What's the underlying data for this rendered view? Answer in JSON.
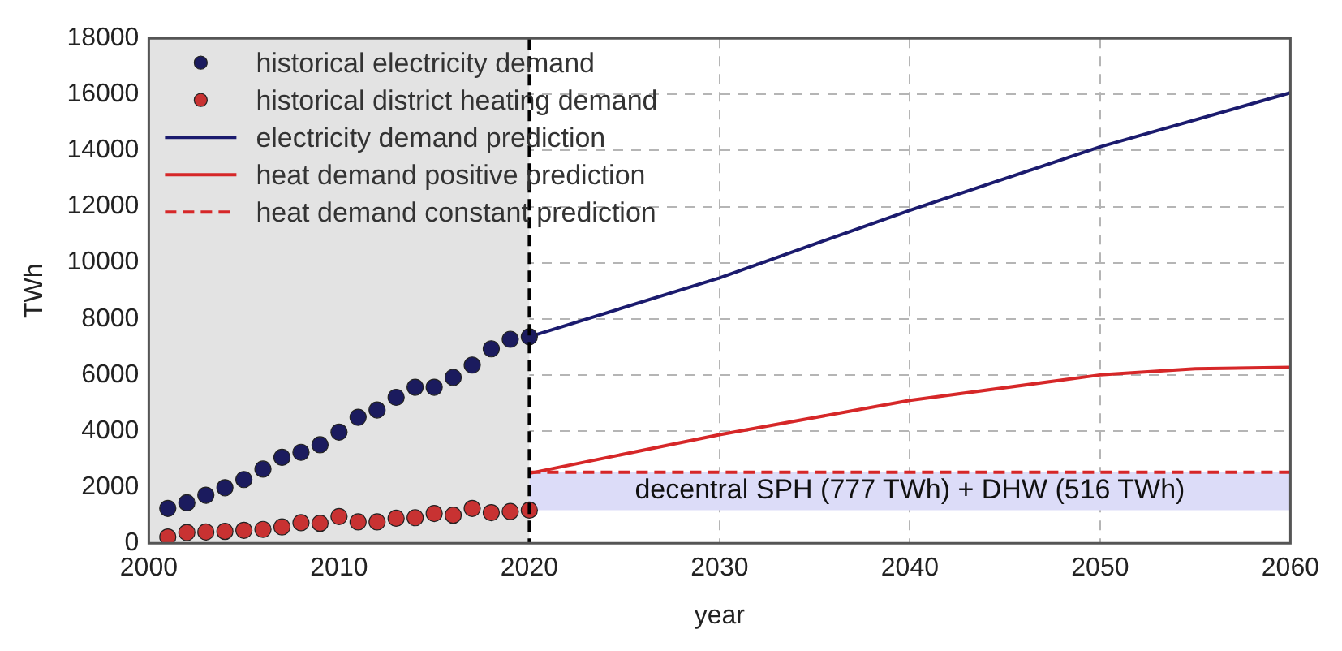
{
  "chart_data": {
    "type": "scatter",
    "xlabel": "year",
    "ylabel": "TWh",
    "xlim": [
      2000,
      2060
    ],
    "xticks": [
      2000,
      2010,
      2020,
      2030,
      2040,
      2050,
      2060
    ],
    "ylim": [
      0,
      18000
    ],
    "yticks": [
      0,
      2000,
      4000,
      6000,
      8000,
      10000,
      12000,
      14000,
      16000,
      18000
    ],
    "grid": true,
    "legend": "top left",
    "series": [
      {
        "name": "historical electricity demand",
        "marker": "circle",
        "color": "#1b1b5e",
        "x": [
          2001,
          2002,
          2003,
          2004,
          2005,
          2006,
          2007,
          2008,
          2009,
          2010,
          2011,
          2012,
          2013,
          2014,
          2015,
          2016,
          2017,
          2018,
          2019,
          2020
        ],
        "values": [
          1240,
          1440,
          1710,
          1980,
          2270,
          2640,
          3060,
          3240,
          3510,
          3960,
          4490,
          4750,
          5200,
          5560,
          5560,
          5910,
          6350,
          6930,
          7270,
          7360
        ]
      },
      {
        "name": "historical district heating demand",
        "marker": "circle",
        "color": "#c83232",
        "x": [
          2001,
          2002,
          2003,
          2004,
          2005,
          2006,
          2007,
          2008,
          2009,
          2010,
          2011,
          2012,
          2013,
          2014,
          2015,
          2016,
          2017,
          2018,
          2019,
          2020
        ],
        "values": [
          220,
          380,
          400,
          420,
          460,
          490,
          580,
          730,
          710,
          950,
          760,
          760,
          890,
          910,
          1060,
          1000,
          1240,
          1090,
          1130,
          1180
        ]
      },
      {
        "name": "electricity demand prediction",
        "type": "line",
        "line_style": "solid",
        "color": "#1b1b6e",
        "x": [
          2020,
          2030,
          2040,
          2050,
          2060
        ],
        "values": [
          7360,
          9460,
          11870,
          14130,
          16060
        ]
      },
      {
        "name": "heat demand positive prediction",
        "type": "line",
        "line_style": "solid",
        "color": "#d62728",
        "x": [
          2020,
          2030,
          2040,
          2050,
          2055,
          2060
        ],
        "values": [
          2490,
          3870,
          5090,
          6000,
          6220,
          6270
        ]
      },
      {
        "name": "heat demand constant prediction",
        "type": "line",
        "line_style": "dashed",
        "color": "#d62728",
        "x": [
          2020,
          2060
        ],
        "values": [
          2530,
          2530
        ]
      }
    ],
    "bands": [
      {
        "axis": "x",
        "from": 2000,
        "to": 2020,
        "color": "#e3e3e3"
      },
      {
        "axis": "y",
        "from": 1180,
        "to": 2530,
        "color": "#dcdcf8",
        "label": "decentral SPH (777 TWh) + DHW (516 TWh)"
      }
    ],
    "ref_lines": [
      {
        "axis": "x",
        "value": 2020,
        "color": "#000000",
        "line_style": "dashed"
      }
    ]
  }
}
